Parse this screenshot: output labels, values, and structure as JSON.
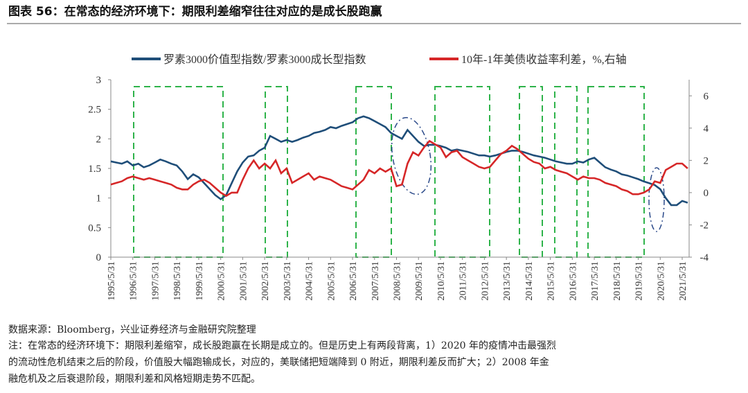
{
  "chart_data": {
    "type": "line",
    "title": "图表 56：在常态的经济环境下：期限利差缩窄往往对应的是成长股跑赢",
    "categories": [
      "1995/5/31",
      null,
      null,
      null,
      "1996/5/31",
      null,
      null,
      null,
      "1997/5/31",
      null,
      null,
      null,
      "1998/5/31",
      null,
      null,
      null,
      "1999/5/31",
      null,
      null,
      null,
      "2000/5/31",
      null,
      null,
      null,
      "2001/5/31",
      null,
      null,
      null,
      "2002/5/31",
      null,
      null,
      null,
      "2003/5/31",
      null,
      null,
      null,
      "2004/5/31",
      null,
      null,
      null,
      "2005/5/31",
      null,
      null,
      null,
      "2006/5/31",
      null,
      null,
      null,
      "2007/5/31",
      null,
      null,
      null,
      "2008/5/31",
      null,
      null,
      null,
      "2009/5/31",
      null,
      null,
      null,
      "2010/5/31",
      null,
      null,
      null,
      "2011/5/31",
      null,
      null,
      null,
      "2012/5/31",
      null,
      null,
      null,
      "2013/5/31",
      null,
      null,
      null,
      "2014/5/31",
      null,
      null,
      null,
      "2015/5/31",
      null,
      null,
      null,
      "2016/5/31",
      null,
      null,
      null,
      "2017/5/31",
      null,
      null,
      null,
      "2018/5/31",
      null,
      null,
      null,
      "2019/5/31",
      null,
      null,
      null,
      "2020/5/31",
      null,
      null,
      null,
      "2021/5/31",
      null
    ],
    "series": [
      {
        "name": "罗素3000价值型指数/罗素3000成长型指数",
        "color": "#1f4e79",
        "values": [
          1.62,
          1.6,
          1.58,
          1.62,
          1.55,
          1.58,
          1.52,
          1.55,
          1.6,
          1.65,
          1.62,
          1.58,
          1.55,
          1.45,
          1.32,
          1.4,
          1.35,
          1.25,
          1.15,
          1.05,
          0.98,
          1.05,
          1.25,
          1.45,
          1.6,
          1.7,
          1.72,
          1.8,
          1.85,
          2.05,
          2.0,
          1.95,
          1.98,
          1.95,
          1.98,
          2.02,
          2.05,
          2.1,
          2.12,
          2.15,
          2.2,
          2.18,
          2.22,
          2.25,
          2.28,
          2.35,
          2.38,
          2.35,
          2.3,
          2.25,
          2.2,
          2.1,
          2.05,
          2.0,
          2.15,
          2.05,
          1.95,
          1.88,
          1.9,
          1.9,
          1.88,
          1.85,
          1.8,
          1.82,
          1.8,
          1.78,
          1.75,
          1.72,
          1.72,
          1.7,
          1.72,
          1.75,
          1.78,
          1.8,
          1.8,
          1.78,
          1.75,
          1.72,
          1.7,
          1.68,
          1.65,
          1.62,
          1.6,
          1.58,
          1.58,
          1.62,
          1.6,
          1.65,
          1.68,
          1.6,
          1.52,
          1.48,
          1.45,
          1.4,
          1.38,
          1.35,
          1.32,
          1.28,
          1.25,
          1.22,
          1.15,
          1.0,
          0.88,
          0.88,
          0.95,
          0.92
        ]
      },
      {
        "name": "10年-1年美债收益率利差，%,右轴",
        "color": "#d62728",
        "axis": "y2",
        "values": [
          0.5,
          0.6,
          0.7,
          0.9,
          1.0,
          0.9,
          0.8,
          0.9,
          0.8,
          0.7,
          0.6,
          0.5,
          0.3,
          0.2,
          0.2,
          0.5,
          0.7,
          0.8,
          0.6,
          0.3,
          0.0,
          -0.2,
          0.0,
          0.0,
          0.8,
          1.5,
          2.0,
          1.5,
          1.8,
          1.5,
          2.0,
          1.2,
          1.5,
          0.6,
          0.8,
          1.0,
          1.2,
          0.8,
          1.0,
          0.9,
          0.8,
          0.6,
          0.4,
          0.3,
          0.2,
          0.5,
          0.8,
          1.4,
          1.2,
          1.5,
          1.3,
          1.5,
          0.4,
          0.5,
          1.8,
          2.5,
          2.3,
          2.8,
          3.2,
          3.0,
          2.8,
          2.2,
          2.5,
          2.6,
          2.2,
          2.0,
          1.8,
          1.6,
          1.5,
          1.6,
          2.0,
          2.4,
          2.6,
          2.9,
          2.7,
          2.4,
          2.1,
          1.9,
          1.8,
          1.5,
          1.6,
          1.4,
          1.3,
          1.2,
          1.0,
          0.8,
          1.0,
          0.9,
          0.9,
          0.8,
          0.6,
          0.5,
          0.4,
          0.2,
          0.1,
          -0.1,
          -0.1,
          0.0,
          0.2,
          0.7,
          0.6,
          1.4,
          1.6,
          1.8,
          1.8,
          1.5
        ]
      }
    ],
    "ylim": [
      0,
      3
    ],
    "yticks": [
      0,
      0.5,
      1,
      1.5,
      2,
      2.5,
      3
    ],
    "y2lim": [
      -4,
      7
    ],
    "y2ticks": [
      -4,
      -2,
      0,
      2,
      4,
      6
    ],
    "legend": "top"
  },
  "source": "数据来源：Bloomberg，兴业证券经济与金融研究院整理",
  "note": [
    "注：在常态的经济环境下：期限利差缩窄，成长股跑赢在长期是成立的。但是历史上有两段背离，1）2020 年的疫情冲击最强烈",
    "的流动性危机结束之后的阶段，价值股大幅跑输成长，对应的，美联储把短端降到 0 附近，期限利差反而扩大；2）2008 年金",
    "融危机及之后衰退阶段，期限利差和风格短期走势不匹配。"
  ]
}
